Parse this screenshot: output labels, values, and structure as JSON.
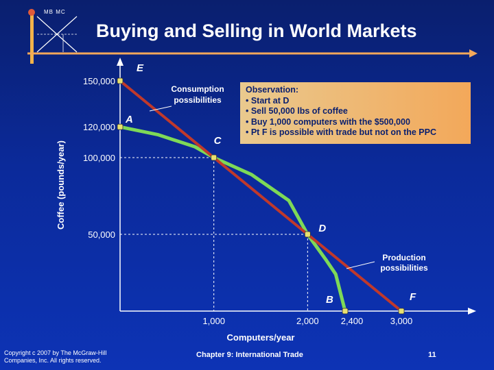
{
  "header": {
    "logo_text": "MB   MC",
    "title": "Buying and Selling in World Markets"
  },
  "observation": {
    "heading": "Observation:",
    "bullets": [
      "• Start at D",
      "• Sell 50,000 lbs of coffee",
      "• Buy 1,000 computers with the $500,000",
      "• Pt F is possible with trade but not on the PPC"
    ]
  },
  "chart_data": {
    "type": "line",
    "title": "Buying and Selling in World Markets",
    "xlabel": "Computers/year",
    "ylabel": "Coffee (pounds/year)",
    "xlim": [
      0,
      3000
    ],
    "ylim": [
      0,
      150000
    ],
    "x_ticks": [
      {
        "value": 1000,
        "label": "1,000"
      },
      {
        "value": 2000,
        "label": "2,000"
      },
      {
        "value": 2400,
        "label": "2,400"
      },
      {
        "value": 3000,
        "label": "3,000"
      }
    ],
    "y_ticks": [
      {
        "value": 150000,
        "label": "150,000"
      },
      {
        "value": 120000,
        "label": "120,000"
      },
      {
        "value": 100000,
        "label": "100,000"
      },
      {
        "value": 50000,
        "label": "50,000"
      }
    ],
    "series": [
      {
        "name": "Production possibilities",
        "color": "#7ed957",
        "points": [
          [
            0,
            120000
          ],
          [
            400,
            115000
          ],
          [
            800,
            107000
          ],
          [
            1000,
            100000
          ],
          [
            1400,
            89000
          ],
          [
            1800,
            72000
          ],
          [
            2000,
            50000
          ],
          [
            2200,
            33000
          ],
          [
            2300,
            24000
          ],
          [
            2400,
            0
          ]
        ]
      },
      {
        "name": "Consumption possibilities",
        "color": "#c0392b",
        "points": [
          [
            0,
            150000
          ],
          [
            3000,
            0
          ]
        ]
      }
    ],
    "points": [
      {
        "label": "E",
        "x": 0,
        "y": 150000
      },
      {
        "label": "A",
        "x": 0,
        "y": 120000
      },
      {
        "label": "C",
        "x": 1000,
        "y": 100000
      },
      {
        "label": "D",
        "x": 2000,
        "y": 50000
      },
      {
        "label": "B",
        "x": 2400,
        "y": 0
      },
      {
        "label": "F",
        "x": 3000,
        "y": 0
      }
    ],
    "annotations": [
      "Consumption possibilities",
      "Production possibilities"
    ]
  },
  "footer": {
    "copyright_line1": "Copyright c 2007 by The McGraw-Hill",
    "copyright_line2": "Companies, Inc. All rights reserved.",
    "chapter": "Chapter 9: International Trade",
    "page_number": "11"
  },
  "colors": {
    "accent_orange": "#f3a85a",
    "curve_green": "#7ed957",
    "line_red": "#c0392b",
    "point_fill": "#e8e070"
  }
}
